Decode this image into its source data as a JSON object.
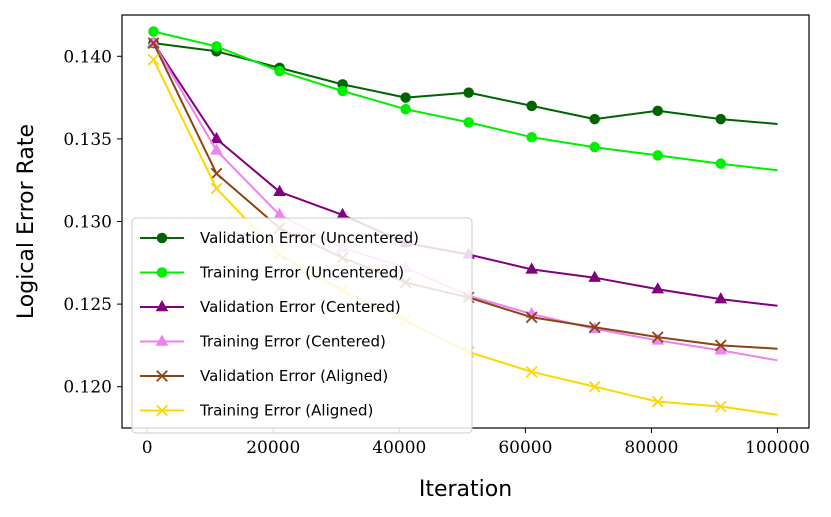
{
  "chart_data": {
    "type": "line",
    "title": "",
    "xlabel": "Iteration",
    "ylabel": "Logical Error Rate",
    "xlim": [
      -4000,
      105000
    ],
    "ylim": [
      0.1175,
      0.1425
    ],
    "xticks": [
      0,
      20000,
      40000,
      60000,
      80000,
      100000
    ],
    "yticks": [
      0.12,
      0.125,
      0.13,
      0.135,
      0.14
    ],
    "xtick_labels": [
      "0",
      "20000",
      "40000",
      "60000",
      "80000",
      "100000"
    ],
    "ytick_labels": [
      "0.120",
      "0.125",
      "0.130",
      "0.135",
      "0.140"
    ],
    "grid": false,
    "legend_position": "lower-left",
    "x": [
      1000,
      11000,
      21000,
      31000,
      41000,
      51000,
      61000,
      71000,
      81000,
      91000,
      100000
    ],
    "series": [
      {
        "name": "Validation Error (Uncentered)",
        "color": "#006400",
        "marker": "circle",
        "values": [
          0.1408,
          0.1403,
          0.1393,
          0.1383,
          0.1375,
          0.1378,
          0.137,
          0.1362,
          0.1367,
          0.1362,
          0.1359
        ]
      },
      {
        "name": "Training Error (Uncentered)",
        "color": "#00ee00",
        "marker": "circle",
        "values": [
          0.1415,
          0.1406,
          0.1391,
          0.1379,
          0.1368,
          0.136,
          0.1351,
          0.1345,
          0.134,
          0.1335,
          0.1331
        ]
      },
      {
        "name": "Validation Error (Centered)",
        "color": "#800080",
        "marker": "triangle",
        "values": [
          0.1408,
          0.135,
          0.1318,
          0.1304,
          0.1287,
          0.128,
          0.1271,
          0.1266,
          0.1259,
          0.1253,
          0.1249
        ]
      },
      {
        "name": "Training Error (Centered)",
        "color": "#ee82ee",
        "marker": "triangle",
        "values": [
          0.1408,
          0.1343,
          0.1304,
          0.1284,
          0.1272,
          0.1255,
          0.1244,
          0.1235,
          0.1228,
          0.1222,
          0.1216
        ]
      },
      {
        "name": "Validation Error (Aligned)",
        "color": "#8b4513",
        "marker": "x",
        "values": [
          0.1408,
          0.1329,
          0.1296,
          0.1278,
          0.1263,
          0.1254,
          0.1242,
          0.1236,
          0.123,
          0.1225,
          0.1223
        ]
      },
      {
        "name": "Training Error (Aligned)",
        "color": "#ffd700",
        "marker": "x",
        "values": [
          0.1398,
          0.132,
          0.128,
          0.1258,
          0.124,
          0.1221,
          0.1209,
          0.12,
          0.1191,
          0.1188,
          0.1183
        ]
      }
    ]
  }
}
